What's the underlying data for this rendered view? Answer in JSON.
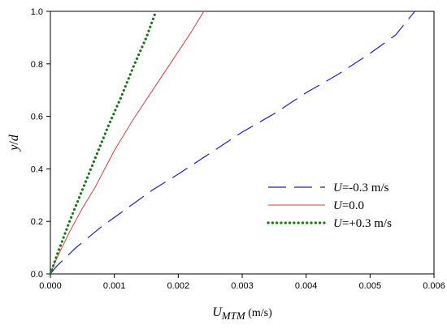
{
  "chart_data": {
    "type": "line",
    "title": "",
    "xlabel_main": "U",
    "xlabel_sub": "MTM",
    "xlabel_unit": " (m/s)",
    "ylabel_italic_1": "y",
    "ylabel_sep": "/",
    "ylabel_italic_2": "d",
    "xlim": [
      0,
      0.006
    ],
    "ylim": [
      0,
      1.0
    ],
    "x_ticks": [
      0,
      0.001,
      0.002,
      0.003,
      0.004,
      0.005,
      0.006
    ],
    "x_tick_labels": [
      "0.000",
      "0.001",
      "0.002",
      "0.003",
      "0.004",
      "0.005",
      "0.006"
    ],
    "y_ticks": [
      0,
      0.2,
      0.4,
      0.6,
      0.8,
      1.0
    ],
    "y_tick_labels": [
      "0.0",
      "0.2",
      "0.4",
      "0.6",
      "0.8",
      "1.0"
    ],
    "grid": false,
    "legend_position": "right-lower",
    "series": [
      {
        "legend_italic": "U",
        "legend_rest": "=-0.3 m/s",
        "color": "#1f1fd6",
        "style": "dashed",
        "x": [
          0,
          0.0001,
          0.0004,
          0.0008,
          0.0012,
          0.0016,
          0.002,
          0.0025,
          0.003,
          0.0035,
          0.004,
          0.0045,
          0.005,
          0.0054,
          0.0057
        ],
        "y": [
          0,
          0.03,
          0.1,
          0.18,
          0.25,
          0.32,
          0.38,
          0.46,
          0.54,
          0.61,
          0.69,
          0.76,
          0.84,
          0.91,
          1.0
        ]
      },
      {
        "legend_italic": "U",
        "legend_rest": "=0.0",
        "color": "#e83a3a",
        "style": "solid",
        "x": [
          0,
          0.0001,
          0.0003,
          0.0005,
          0.0007,
          0.001,
          0.0013,
          0.0016,
          0.0019,
          0.0022,
          0.0024
        ],
        "y": [
          0,
          0.06,
          0.16,
          0.25,
          0.33,
          0.47,
          0.59,
          0.7,
          0.81,
          0.92,
          1.0
        ]
      },
      {
        "legend_italic": "U",
        "legend_rest": "=+0.3 m/s",
        "color": "#157a15",
        "style": "dotted",
        "x": [
          0,
          0.0001,
          0.0003,
          0.0005,
          0.0007,
          0.0009,
          0.0011,
          0.0013,
          0.0015,
          0.00165
        ],
        "y": [
          0,
          0.07,
          0.2,
          0.32,
          0.44,
          0.56,
          0.67,
          0.79,
          0.9,
          1.0
        ]
      }
    ],
    "colors": {
      "axis": "#000000",
      "background": "#ffffff"
    }
  }
}
